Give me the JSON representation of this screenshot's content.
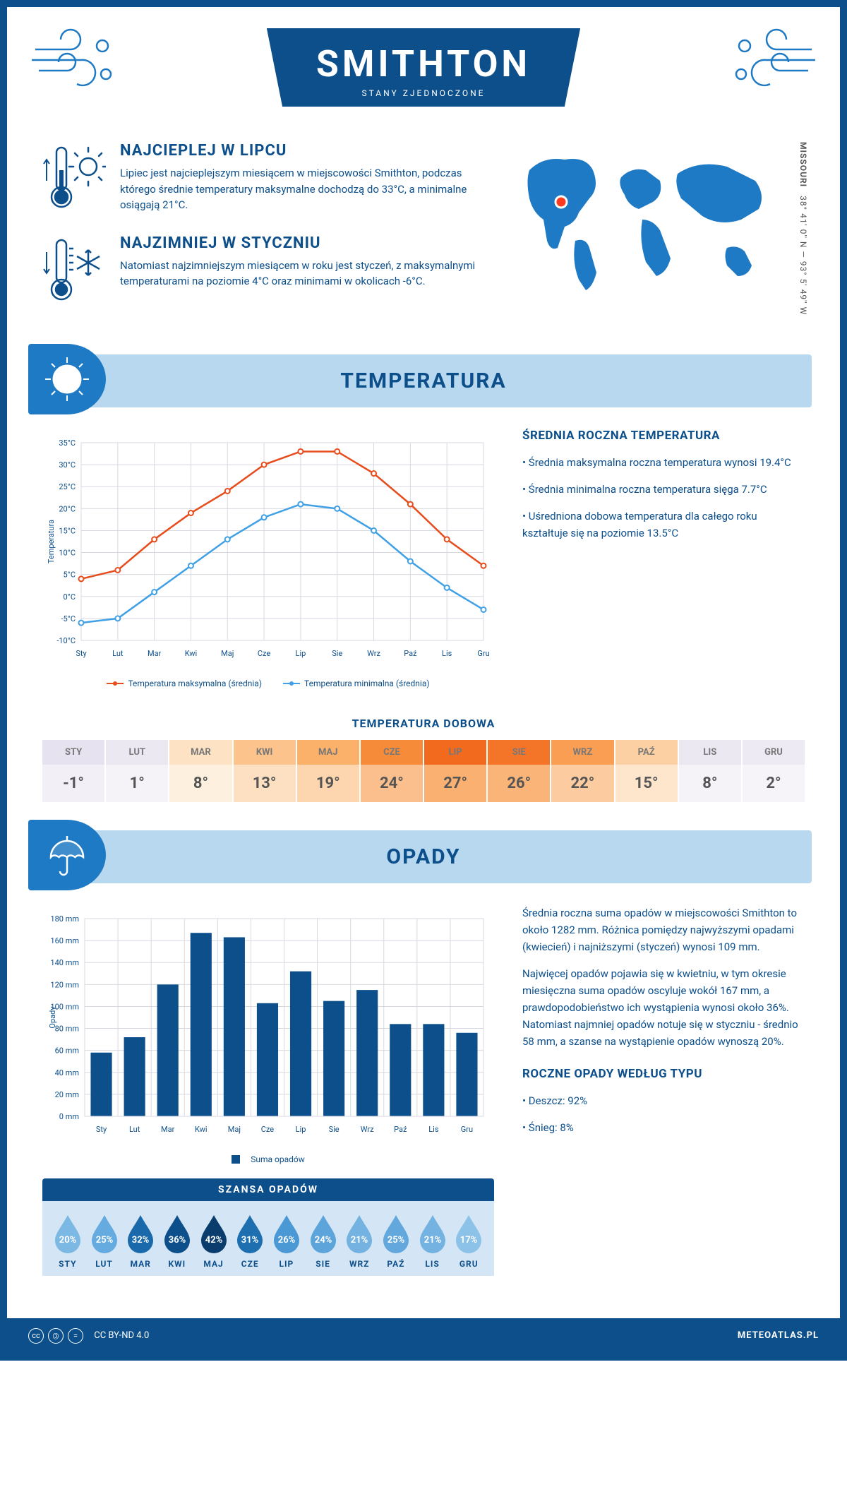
{
  "header": {
    "title": "SMITHTON",
    "subtitle": "STANY ZJEDNOCZONE"
  },
  "location": {
    "coords": "38° 41' 0'' N — 93° 5' 49'' W",
    "state": "MISSOURI",
    "marker_color": "#ff3b1f"
  },
  "facts": {
    "warm": {
      "title": "NAJCIEPLEJ W LIPCU",
      "body": "Lipiec jest najcieplejszym miesiącem w miejscowości Smithton, podczas którego średnie temperatury maksymalne dochodzą do 33°C, a minimalne osiągają 21°C."
    },
    "cold": {
      "title": "NAJZIMNIEJ W STYCZNIU",
      "body": "Natomiast najzimniejszym miesiącem w roku jest styczeń, z maksymalnymi temperaturami na poziomie 4°C oraz minimami w okolicach -6°C."
    }
  },
  "temp_section": {
    "heading": "TEMPERATURA",
    "chart": {
      "type": "line",
      "months": [
        "Sty",
        "Lut",
        "Mar",
        "Kwi",
        "Maj",
        "Cze",
        "Lip",
        "Sie",
        "Wrz",
        "Paź",
        "Lis",
        "Gru"
      ],
      "max_series": [
        4,
        6,
        13,
        19,
        24,
        30,
        33,
        33,
        28,
        21,
        13,
        7
      ],
      "min_series": [
        -6,
        -5,
        1,
        7,
        13,
        18,
        21,
        20,
        15,
        8,
        2,
        -3
      ],
      "max_color": "#e74c1c",
      "min_color": "#3fa0e6",
      "ylabel": "Temperatura",
      "ymin": -10,
      "ymax": 35,
      "ytick_step": 5,
      "grid_color": "#d8d8e0",
      "legend_max": "Temperatura maksymalna (średnia)",
      "legend_min": "Temperatura minimalna (średnia)"
    },
    "side": {
      "title": "ŚREDNIA ROCZNA TEMPERATURA",
      "bullets": [
        "• Średnia maksymalna roczna temperatura wynosi 19.4°C",
        "• Średnia minimalna roczna temperatura sięga 7.7°C",
        "• Uśredniona dobowa temperatura dla całego roku kształtuje się na poziomie 13.5°C"
      ]
    },
    "dobowa": {
      "title": "TEMPERATURA DOBOWA",
      "months": [
        "STY",
        "LUT",
        "MAR",
        "KWI",
        "MAJ",
        "CZE",
        "LIP",
        "SIE",
        "WRZ",
        "PAŹ",
        "LIS",
        "GRU"
      ],
      "values": [
        "-1°",
        "1°",
        "8°",
        "13°",
        "19°",
        "24°",
        "27°",
        "26°",
        "22°",
        "15°",
        "8°",
        "2°"
      ],
      "header_colors": [
        "#e6e2f0",
        "#ece8f2",
        "#fde2c4",
        "#fcc48c",
        "#fbb169",
        "#f68b3a",
        "#f26a1e",
        "#f47527",
        "#f99e52",
        "#fcd0a3",
        "#ece8f2",
        "#eeeaf4"
      ],
      "value_colors": [
        "#f2eff7",
        "#f5f2f8",
        "#fef0de",
        "#fde0c2",
        "#fdd6af",
        "#fbbf8d",
        "#fab070",
        "#fab478",
        "#fccba0",
        "#fee6cd",
        "#f5f2f8",
        "#f6f3f9"
      ]
    }
  },
  "precip_section": {
    "heading": "OPADY",
    "chart": {
      "type": "bar",
      "months": [
        "Sty",
        "Lut",
        "Mar",
        "Kwi",
        "Maj",
        "Cze",
        "Lip",
        "Sie",
        "Wrz",
        "Paź",
        "Lis",
        "Gru"
      ],
      "values": [
        58,
        72,
        120,
        167,
        163,
        103,
        132,
        105,
        115,
        84,
        84,
        76
      ],
      "bar_color": "#0d4f8b",
      "ylabel": "Opady",
      "ymin": 0,
      "ymax": 180,
      "ytick_step": 20,
      "legend": "Suma opadów"
    },
    "side": {
      "p1": "Średnia roczna suma opadów w miejscowości Smithton to około 1282 mm. Różnica pomiędzy najwyższymi opadami (kwiecień) i najniższymi (styczeń) wynosi 109 mm.",
      "p2": "Najwięcej opadów pojawia się w kwietniu, w tym okresie miesięczna suma opadów oscyluje wokół 167 mm, a prawdopodobieństwo ich wystąpienia wynosi około 36%. Natomiast najmniej opadów notuje się w styczniu - średnio 58 mm, a szanse na wystąpienie opadów wynoszą 20%.",
      "type_title": "ROCZNE OPADY WEDŁUG TYPU",
      "type_rain": "• Deszcz: 92%",
      "type_snow": "• Śnieg: 8%"
    },
    "drops": {
      "title": "SZANSA OPADÓW",
      "months": [
        "STY",
        "LUT",
        "MAR",
        "KWI",
        "MAJ",
        "CZE",
        "LIP",
        "SIE",
        "WRZ",
        "PAŹ",
        "LIS",
        "GRU"
      ],
      "pct": [
        "20%",
        "25%",
        "32%",
        "36%",
        "42%",
        "31%",
        "26%",
        "24%",
        "21%",
        "25%",
        "21%",
        "17%"
      ],
      "colors": [
        "#7cb8e4",
        "#66abe0",
        "#1a6aab",
        "#0d4f8b",
        "#0a3d6e",
        "#1e6fb0",
        "#4a98d4",
        "#5ca4da",
        "#73b2e1",
        "#62a8dd",
        "#73b2e1",
        "#8cc2e8"
      ]
    }
  },
  "footer": {
    "license": "CC BY-ND 4.0",
    "brand": "METEOATLAS.PL"
  },
  "palette": {
    "primary": "#0d4f8b",
    "light": "#b8d8f0",
    "accent": "#1e7ac4"
  }
}
